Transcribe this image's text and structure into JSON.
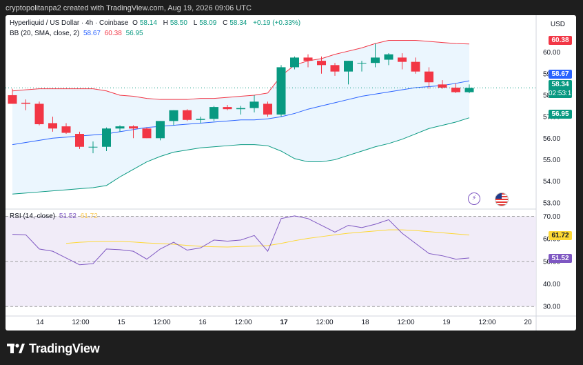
{
  "credit": "cryptopolitanpa2 created with TradingView.com, Aug 19, 2026 09:06 UTC",
  "legend": {
    "symbol": "Hyperliquid / US Dollar · 4h · Coinbase",
    "o_label": "O",
    "o": "58.14",
    "h_label": "H",
    "h": "58.50",
    "l_label": "L",
    "l": "58.09",
    "c_label": "C",
    "c": "58.34",
    "change": "+0.19 (+0.33%)",
    "bb_label": "BB (20, SMA, close, 2)",
    "bb_mid": "58.67",
    "bb_upper": "60.38",
    "bb_lower": "56.95",
    "rsi_label": "RSI (14, close)",
    "rsi_value": "51.52",
    "rsi_ma": "61.72"
  },
  "currency": "USD",
  "brand": "TradingView",
  "badges": {
    "upper": "60.38",
    "mid": "58.67",
    "price": "58.34",
    "countdown": "02:53:16",
    "lower": "56.95",
    "rsi_ma": "61.72",
    "rsi": "51.52"
  },
  "colors": {
    "up": "#089981",
    "down": "#f23645",
    "basis": "#2962ff",
    "upper": "#f23645",
    "lower": "#089981",
    "band_fill": "#e3f2fd",
    "rsi": "#7e57c2",
    "rsi_ma": "#fdd835",
    "rsi_fill": "#ede7f6"
  },
  "chart_data": [
    {
      "type": "candlestick",
      "title": "Hyperliquid / US Dollar · 4h · Coinbase",
      "price_axis": {
        "ticks": [
          "60.00",
          "59.00",
          "58.00",
          "57.00",
          "56.00",
          "55.00",
          "54.00",
          "53.00"
        ],
        "ylim": [
          52.8,
          61.4
        ]
      },
      "time_axis": {
        "labels": [
          "14",
          "12:00",
          "15",
          "12:00",
          "16",
          "12:00",
          "17",
          "12:00",
          "18",
          "12:00",
          "19",
          "12:00",
          "20"
        ]
      },
      "candles": [
        {
          "o": 58.0,
          "h": 58.3,
          "l": 57.6,
          "c": 57.6
        },
        {
          "o": 57.65,
          "h": 57.8,
          "l": 57.3,
          "c": 57.6
        },
        {
          "o": 57.6,
          "h": 57.7,
          "l": 56.6,
          "c": 56.65
        },
        {
          "o": 56.7,
          "h": 57.0,
          "l": 56.3,
          "c": 56.45
        },
        {
          "o": 56.55,
          "h": 56.7,
          "l": 56.2,
          "c": 56.25
        },
        {
          "o": 56.2,
          "h": 56.3,
          "l": 55.5,
          "c": 55.6
        },
        {
          "o": 55.6,
          "h": 55.85,
          "l": 55.3,
          "c": 55.6
        },
        {
          "o": 55.6,
          "h": 56.5,
          "l": 55.4,
          "c": 56.45
        },
        {
          "o": 56.45,
          "h": 56.6,
          "l": 56.3,
          "c": 56.55
        },
        {
          "o": 56.55,
          "h": 56.6,
          "l": 56.0,
          "c": 56.45
        },
        {
          "o": 56.45,
          "h": 56.5,
          "l": 56.0,
          "c": 56.0
        },
        {
          "o": 56.0,
          "h": 56.8,
          "l": 55.9,
          "c": 56.8
        },
        {
          "o": 56.8,
          "h": 57.3,
          "l": 56.6,
          "c": 57.3
        },
        {
          "o": 57.3,
          "h": 57.35,
          "l": 56.8,
          "c": 56.85
        },
        {
          "o": 56.85,
          "h": 57.0,
          "l": 56.7,
          "c": 56.9
        },
        {
          "o": 56.9,
          "h": 57.5,
          "l": 56.8,
          "c": 57.45
        },
        {
          "o": 57.45,
          "h": 57.55,
          "l": 57.3,
          "c": 57.35
        },
        {
          "o": 57.35,
          "h": 57.5,
          "l": 57.1,
          "c": 57.4
        },
        {
          "o": 57.4,
          "h": 58.0,
          "l": 57.2,
          "c": 57.7
        },
        {
          "o": 57.6,
          "h": 57.7,
          "l": 57.0,
          "c": 57.1
        },
        {
          "o": 57.1,
          "h": 59.4,
          "l": 57.0,
          "c": 59.3
        },
        {
          "o": 59.3,
          "h": 59.8,
          "l": 59.2,
          "c": 59.75
        },
        {
          "o": 59.75,
          "h": 59.9,
          "l": 59.3,
          "c": 59.6
        },
        {
          "o": 59.6,
          "h": 59.8,
          "l": 59.0,
          "c": 59.4
        },
        {
          "o": 59.4,
          "h": 59.5,
          "l": 58.9,
          "c": 59.1
        },
        {
          "o": 59.1,
          "h": 59.6,
          "l": 58.5,
          "c": 59.6
        },
        {
          "o": 59.5,
          "h": 59.6,
          "l": 59.1,
          "c": 59.5
        },
        {
          "o": 59.5,
          "h": 60.4,
          "l": 59.3,
          "c": 59.75
        },
        {
          "o": 59.65,
          "h": 59.95,
          "l": 59.4,
          "c": 59.9
        },
        {
          "o": 59.75,
          "h": 59.95,
          "l": 59.2,
          "c": 59.55
        },
        {
          "o": 59.55,
          "h": 59.75,
          "l": 59.0,
          "c": 59.1
        },
        {
          "o": 59.1,
          "h": 59.3,
          "l": 58.3,
          "c": 58.6
        },
        {
          "o": 58.5,
          "h": 58.7,
          "l": 58.3,
          "c": 58.35
        },
        {
          "o": 58.35,
          "h": 58.55,
          "l": 58.1,
          "c": 58.14
        },
        {
          "o": 58.14,
          "h": 58.5,
          "l": 58.09,
          "c": 58.34
        }
      ],
      "bollinger": {
        "upper": [
          58.2,
          58.25,
          58.3,
          58.3,
          58.3,
          58.3,
          58.3,
          58.2,
          58.0,
          57.95,
          57.85,
          57.8,
          57.8,
          57.8,
          57.85,
          57.85,
          57.9,
          57.95,
          58.0,
          58.1,
          58.9,
          59.4,
          59.6,
          59.7,
          59.9,
          60.05,
          60.2,
          60.4,
          60.55,
          60.55,
          60.55,
          60.5,
          60.45,
          60.4,
          60.38
        ],
        "basis": [
          55.7,
          55.8,
          55.9,
          56.0,
          56.05,
          56.1,
          56.15,
          56.2,
          56.3,
          56.4,
          56.5,
          56.55,
          56.6,
          56.65,
          56.7,
          56.75,
          56.8,
          56.85,
          56.85,
          56.9,
          57.0,
          57.15,
          57.35,
          57.5,
          57.65,
          57.8,
          57.95,
          58.05,
          58.15,
          58.25,
          58.35,
          58.4,
          58.45,
          58.55,
          58.67
        ],
        "lower": [
          53.4,
          53.45,
          53.5,
          53.55,
          53.6,
          53.65,
          53.7,
          53.8,
          54.2,
          54.55,
          54.9,
          55.15,
          55.35,
          55.45,
          55.55,
          55.6,
          55.65,
          55.7,
          55.7,
          55.65,
          55.4,
          55.05,
          54.9,
          54.9,
          55.0,
          55.2,
          55.4,
          55.6,
          55.75,
          55.95,
          56.2,
          56.45,
          56.6,
          56.75,
          56.95
        ]
      }
    },
    {
      "type": "line",
      "title": "RSI (14, close)",
      "rsi_axis": {
        "ticks": [
          "70.00",
          "60.00",
          "50.00",
          "40.00",
          "30.00"
        ],
        "ylim": [
          27,
          72
        ]
      },
      "bands": [
        30,
        50,
        70
      ],
      "series": [
        {
          "name": "RSI",
          "values": [
            62,
            61.8,
            55.5,
            54.5,
            51.5,
            48.5,
            49,
            55.5,
            55.2,
            54.5,
            51,
            55.5,
            58.5,
            55,
            56,
            59.5,
            59,
            59.5,
            61.5,
            54.5,
            69,
            70.2,
            69,
            66,
            63,
            66,
            65,
            66.5,
            68.5,
            62.5,
            58,
            53.5,
            52.5,
            51,
            51.52
          ]
        },
        {
          "name": "RSI-based MA",
          "values": [
            null,
            null,
            null,
            null,
            58,
            58.5,
            58.8,
            58.9,
            58.9,
            58.6,
            58.2,
            57.9,
            57.6,
            57.1,
            56.7,
            56.5,
            56.4,
            56.6,
            56.8,
            57,
            58,
            59.2,
            60.2,
            61,
            61.8,
            62.5,
            63,
            63.5,
            64,
            64,
            63.7,
            63.2,
            62.7,
            62.2,
            61.72
          ]
        }
      ]
    }
  ]
}
